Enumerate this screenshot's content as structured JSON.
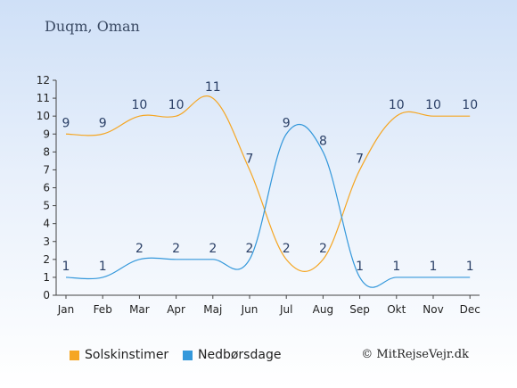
{
  "title": "Duqm, Oman",
  "copyright": "© MitRejseVejr.dk",
  "chart_data": {
    "type": "line",
    "categories": [
      "Jan",
      "Feb",
      "Mar",
      "Apr",
      "Maj",
      "Jun",
      "Jul",
      "Aug",
      "Sep",
      "Okt",
      "Nov",
      "Dec"
    ],
    "series": [
      {
        "name": "Solskinstimer",
        "color": "#f5a623",
        "values": [
          9,
          9,
          10,
          10,
          11,
          7,
          2,
          2,
          7,
          10,
          10,
          10
        ]
      },
      {
        "name": "Nedbørsdage",
        "color": "#3498db",
        "values": [
          1,
          1,
          2,
          2,
          2,
          2,
          9,
          8,
          1,
          1,
          1,
          1
        ]
      }
    ],
    "yticks": [
      0,
      1,
      2,
      3,
      4,
      5,
      6,
      7,
      8,
      9,
      10,
      11,
      12
    ],
    "ylim": [
      0,
      12
    ],
    "grid": false,
    "legend_position": "bottom-left"
  }
}
